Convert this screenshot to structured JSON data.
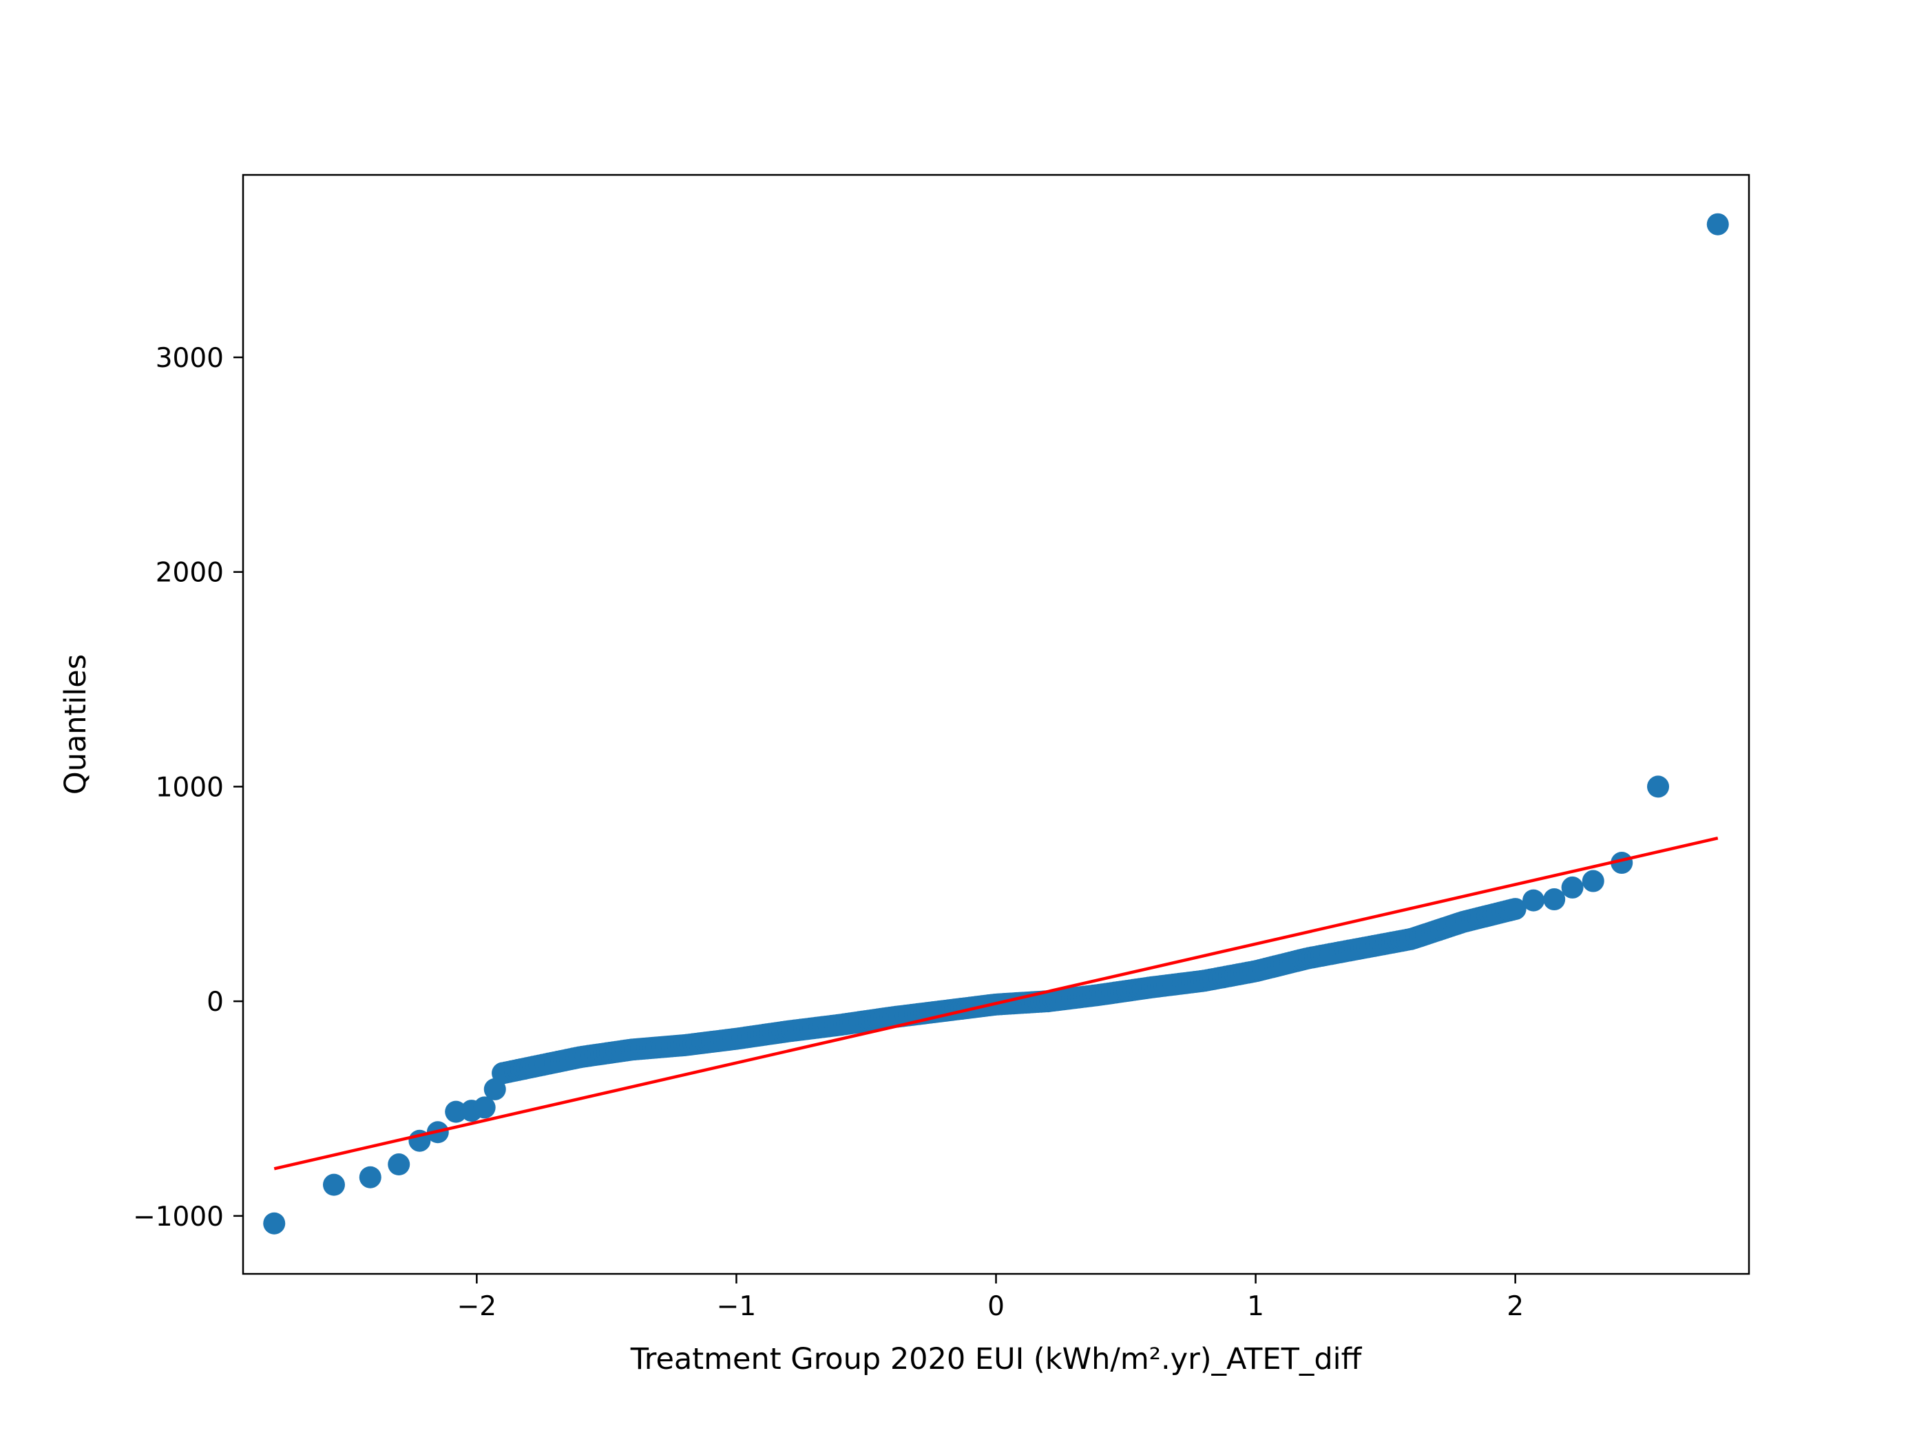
{
  "chart_data": {
    "type": "scatter",
    "title": "",
    "xlabel": "Treatment Group 2020 EUI (kWh/m².yr)_ATET_diff",
    "ylabel": "Quantiles",
    "xlim": [
      -2.9,
      2.9
    ],
    "ylim": [
      -1270,
      3850
    ],
    "xticks": [
      -2,
      -1,
      0,
      1,
      2
    ],
    "xtick_labels": [
      "−2",
      "−1",
      "0",
      "1",
      "2"
    ],
    "yticks": [
      -1000,
      0,
      1000,
      2000,
      3000
    ],
    "ytick_labels": [
      "−1000",
      "0",
      "1000",
      "2000",
      "3000"
    ],
    "grid": false,
    "marker_color": "#1f77b4",
    "line_color": "#ff0000",
    "reference_line": {
      "x": [
        -2.78,
        2.78
      ],
      "y": [
        -780,
        760
      ]
    },
    "outliers": [
      {
        "x": -2.78,
        "y": -1035
      },
      {
        "x": -2.55,
        "y": -855
      },
      {
        "x": -2.41,
        "y": -820
      },
      {
        "x": -2.3,
        "y": -760
      },
      {
        "x": -2.22,
        "y": -650
      },
      {
        "x": -2.15,
        "y": -610
      },
      {
        "x": -2.08,
        "y": -515
      },
      {
        "x": -2.02,
        "y": -510
      },
      {
        "x": -1.97,
        "y": -495
      },
      {
        "x": -1.93,
        "y": -410
      },
      {
        "x": 2.07,
        "y": 470
      },
      {
        "x": 2.15,
        "y": 475
      },
      {
        "x": 2.22,
        "y": 530
      },
      {
        "x": 2.3,
        "y": 560
      },
      {
        "x": 2.41,
        "y": 645
      },
      {
        "x": 2.55,
        "y": 1000
      },
      {
        "x": 2.78,
        "y": 3620
      }
    ],
    "bulk_curve": {
      "x": [
        -1.9,
        -1.8,
        -1.6,
        -1.4,
        -1.2,
        -1.0,
        -0.8,
        -0.6,
        -0.4,
        -0.2,
        0.0,
        0.2,
        0.4,
        0.6,
        0.8,
        1.0,
        1.2,
        1.4,
        1.6,
        1.8,
        2.0
      ],
      "y": [
        -335,
        -310,
        -260,
        -225,
        -205,
        -175,
        -140,
        -110,
        -75,
        -45,
        -15,
        0,
        30,
        65,
        95,
        140,
        200,
        245,
        290,
        370,
        430
      ]
    },
    "bulk_point_count": 330
  }
}
